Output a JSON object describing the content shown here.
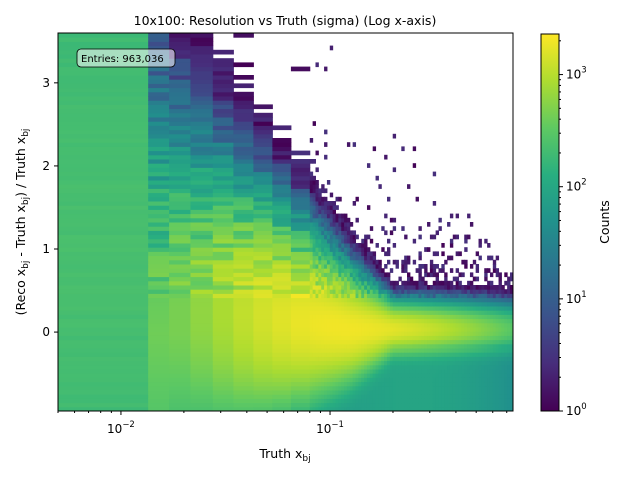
{
  "chart_data": {
    "type": "heatmap",
    "title": "10x100: Resolution vs Truth (sigma) (Log x-axis)",
    "xlabel": {
      "main": "Truth x",
      "sub": "bj"
    },
    "ylabel": {
      "parts": [
        {
          "t": "(Reco x",
          "sub": false
        },
        {
          "t": "bj",
          "sub": true
        },
        {
          "t": " - Truth x",
          "sub": false
        },
        {
          "t": "bj",
          "sub": true
        },
        {
          "t": ") / Truth x",
          "sub": false
        },
        {
          "t": "bj",
          "sub": true
        }
      ]
    },
    "x_scale": "log",
    "xlim": [
      0.005,
      0.75
    ],
    "ylim": [
      -0.95,
      3.6
    ],
    "x_ticks": [
      {
        "value": 0.01,
        "base": "10",
        "exp": "−2"
      },
      {
        "value": 0.1,
        "base": "10",
        "exp": "−1"
      }
    ],
    "y_ticks": [
      {
        "value": 0,
        "label": "0"
      },
      {
        "value": 1,
        "label": "1"
      },
      {
        "value": 2,
        "label": "2"
      },
      {
        "value": 3,
        "label": "3"
      }
    ],
    "annotation": "Entries: 963,036",
    "colorbar": {
      "label": "Counts",
      "scale": "log",
      "range": [
        1,
        2300
      ],
      "colormap": "viridis",
      "ticks": [
        {
          "value": 1,
          "base": "10",
          "exp": "0"
        },
        {
          "value": 10,
          "base": "10",
          "exp": "1"
        },
        {
          "value": 100,
          "base": "10",
          "exp": "2"
        },
        {
          "value": 1000,
          "base": "10",
          "exp": "3"
        }
      ]
    },
    "grid": false
  }
}
